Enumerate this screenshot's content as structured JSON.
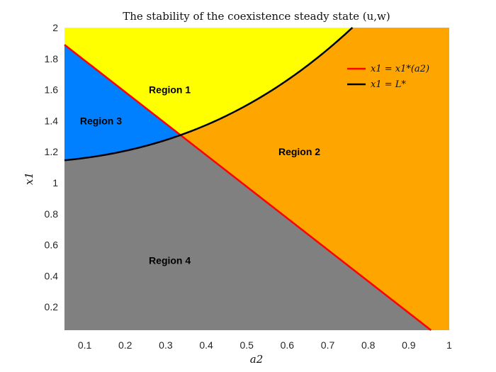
{
  "chart_data": {
    "type": "area",
    "title": "The stability of the coexistence steady state (u,w)",
    "xlabel": "a2",
    "ylabel": "x1",
    "xlim": [
      0.05,
      1.0
    ],
    "ylim": [
      0.05,
      2.0
    ],
    "xticks": [
      "0.1",
      "0.2",
      "0.3",
      "0.4",
      "0.5",
      "0.6",
      "0.7",
      "0.8",
      "0.9",
      "1"
    ],
    "yticks": [
      "0.2",
      "0.4",
      "0.6",
      "0.8",
      "1",
      "1.2",
      "1.4",
      "1.6",
      "1.8",
      "2"
    ],
    "grid": false,
    "legend_position": "top-right",
    "colors": {
      "region1": "#ffff00",
      "region2": "#ffa500",
      "region3": "#0080ff",
      "region4": "#808080",
      "red_curve": "#ff0000",
      "black_curve": "#000000"
    },
    "regions": [
      {
        "label": "Region 1",
        "x": 0.31,
        "y": 1.6
      },
      {
        "label": "Region 2",
        "x": 0.63,
        "y": 1.2
      },
      {
        "label": "Region 3",
        "x": 0.14,
        "y": 1.4
      },
      {
        "label": "Region 4",
        "x": 0.31,
        "y": 0.5
      }
    ],
    "series": [
      {
        "name": "x1 = x1*(a2)",
        "color": "#ff0000",
        "x": [
          0.05,
          0.955
        ],
        "y": [
          1.89,
          0.05
        ]
      },
      {
        "name": "x1 = L*",
        "color": "#000000",
        "x": [
          0.05,
          0.1,
          0.15,
          0.2,
          0.25,
          0.3,
          0.35,
          0.4,
          0.45,
          0.5,
          0.55,
          0.6,
          0.65,
          0.7,
          0.75,
          0.8,
          0.85,
          0.87
        ],
        "y": [
          1.145,
          1.163,
          1.185,
          1.21,
          1.24,
          1.276,
          1.318,
          1.365,
          1.418,
          1.478,
          1.545,
          1.62,
          1.703,
          1.794,
          1.76,
          1.895,
          1.98,
          2.0
        ]
      }
    ]
  }
}
